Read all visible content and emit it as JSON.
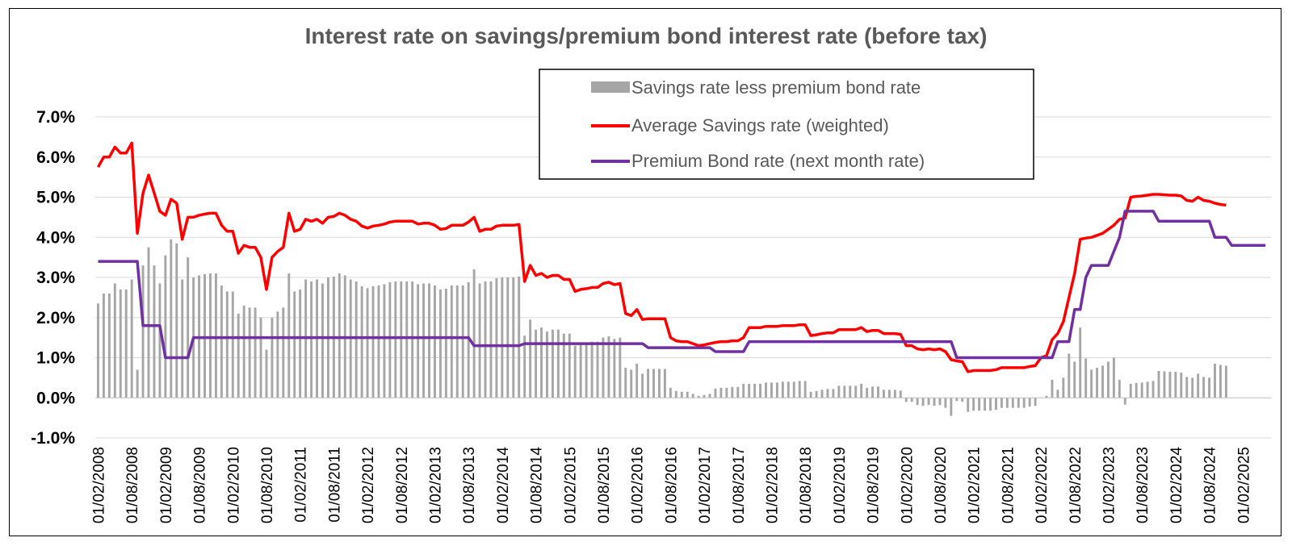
{
  "chart_data": {
    "type": "bar+line",
    "title": "Interest rate on savings/premium bond interest rate (before tax)",
    "xlabel": "",
    "ylabel": "",
    "ylim": [
      -0.01,
      0.07
    ],
    "ytick_labels": [
      "-1.0%",
      "0.0%",
      "1.0%",
      "2.0%",
      "3.0%",
      "4.0%",
      "5.0%",
      "6.0%",
      "7.0%"
    ],
    "x_range": [
      "2008-02",
      "2025-06"
    ],
    "x_tick_labels": [
      "01/02/2008",
      "01/08/2008",
      "01/02/2009",
      "01/08/2009",
      "01/02/2010",
      "01/08/2010",
      "01/02/2011",
      "01/08/2011",
      "01/02/2012",
      "01/08/2012",
      "01/02/2013",
      "01/08/2013",
      "01/02/2014",
      "01/08/2014",
      "01/02/2015",
      "01/08/2015",
      "01/02/2016",
      "01/08/2016",
      "01/02/2017",
      "01/08/2017",
      "01/02/2018",
      "01/08/2018",
      "01/02/2019",
      "01/08/2019",
      "01/02/2020",
      "01/08/2020",
      "01/02/2021",
      "01/08/2021",
      "01/02/2022",
      "01/08/2022",
      "01/02/2023",
      "01/08/2023",
      "01/02/2024",
      "01/08/2024",
      "01/02/2025"
    ],
    "grid": true,
    "legend_position": "top-center",
    "series": [
      {
        "name": "Savings rate less premium bond rate",
        "type": "bar",
        "color": "#a6a6a6",
        "derived": "savings minus premium bond"
      },
      {
        "name": "Average Savings rate (weighted)",
        "type": "line",
        "color": "#ff0000",
        "points": [
          [
            "2008-02",
            5.75
          ],
          [
            "2008-03",
            6.0
          ],
          [
            "2008-04",
            6.0
          ],
          [
            "2008-05",
            6.25
          ],
          [
            "2008-06",
            6.1
          ],
          [
            "2008-07",
            6.1
          ],
          [
            "2008-08",
            6.35
          ],
          [
            "2008-09",
            4.1
          ],
          [
            "2008-10",
            5.1
          ],
          [
            "2008-11",
            5.55
          ],
          [
            "2008-12",
            5.1
          ],
          [
            "2009-01",
            4.65
          ],
          [
            "2009-02",
            4.55
          ],
          [
            "2009-03",
            4.95
          ],
          [
            "2009-04",
            4.85
          ],
          [
            "2009-05",
            3.95
          ],
          [
            "2009-06",
            4.5
          ],
          [
            "2009-07",
            4.5
          ],
          [
            "2009-08",
            4.55
          ],
          [
            "2009-09",
            4.58
          ],
          [
            "2009-10",
            4.6
          ],
          [
            "2009-11",
            4.6
          ],
          [
            "2009-12",
            4.3
          ],
          [
            "2010-01",
            4.15
          ],
          [
            "2010-02",
            4.15
          ],
          [
            "2010-03",
            3.6
          ],
          [
            "2010-04",
            3.8
          ],
          [
            "2010-05",
            3.75
          ],
          [
            "2010-06",
            3.75
          ],
          [
            "2010-07",
            3.5
          ],
          [
            "2010-08",
            2.7
          ],
          [
            "2010-09",
            3.5
          ],
          [
            "2010-10",
            3.65
          ],
          [
            "2010-11",
            3.75
          ],
          [
            "2010-12",
            4.6
          ],
          [
            "2011-01",
            4.15
          ],
          [
            "2011-02",
            4.2
          ],
          [
            "2011-03",
            4.45
          ],
          [
            "2011-04",
            4.4
          ],
          [
            "2011-05",
            4.45
          ],
          [
            "2011-06",
            4.35
          ],
          [
            "2011-07",
            4.5
          ],
          [
            "2011-08",
            4.52
          ],
          [
            "2011-09",
            4.6
          ],
          [
            "2011-10",
            4.55
          ],
          [
            "2011-11",
            4.45
          ],
          [
            "2011-12",
            4.4
          ],
          [
            "2012-01",
            4.28
          ],
          [
            "2012-02",
            4.23
          ],
          [
            "2012-03",
            4.28
          ],
          [
            "2012-04",
            4.3
          ],
          [
            "2012-05",
            4.33
          ],
          [
            "2012-06",
            4.38
          ],
          [
            "2012-07",
            4.4
          ],
          [
            "2012-08",
            4.4
          ],
          [
            "2012-09",
            4.4
          ],
          [
            "2012-10",
            4.4
          ],
          [
            "2012-11",
            4.33
          ],
          [
            "2012-12",
            4.35
          ],
          [
            "2013-01",
            4.35
          ],
          [
            "2013-02",
            4.3
          ],
          [
            "2013-03",
            4.2
          ],
          [
            "2013-04",
            4.22
          ],
          [
            "2013-05",
            4.3
          ],
          [
            "2013-06",
            4.3
          ],
          [
            "2013-07",
            4.3
          ],
          [
            "2013-08",
            4.38
          ],
          [
            "2013-09",
            4.5
          ],
          [
            "2013-10",
            4.15
          ],
          [
            "2013-11",
            4.2
          ],
          [
            "2013-12",
            4.2
          ],
          [
            "2014-01",
            4.28
          ],
          [
            "2014-02",
            4.3
          ],
          [
            "2014-03",
            4.3
          ],
          [
            "2014-04",
            4.3
          ],
          [
            "2014-05",
            4.32
          ],
          [
            "2014-06",
            2.9
          ],
          [
            "2014-07",
            3.3
          ],
          [
            "2014-08",
            3.05
          ],
          [
            "2014-09",
            3.1
          ],
          [
            "2014-10",
            3.0
          ],
          [
            "2014-11",
            3.05
          ],
          [
            "2014-12",
            3.05
          ],
          [
            "2015-01",
            2.95
          ],
          [
            "2015-02",
            2.95
          ],
          [
            "2015-03",
            2.65
          ],
          [
            "2015-04",
            2.7
          ],
          [
            "2015-05",
            2.72
          ],
          [
            "2015-06",
            2.75
          ],
          [
            "2015-07",
            2.75
          ],
          [
            "2015-08",
            2.85
          ],
          [
            "2015-09",
            2.88
          ],
          [
            "2015-10",
            2.82
          ],
          [
            "2015-11",
            2.85
          ],
          [
            "2015-12",
            2.1
          ],
          [
            "2016-01",
            2.05
          ],
          [
            "2016-02",
            2.2
          ],
          [
            "2016-03",
            1.95
          ],
          [
            "2016-04",
            1.97
          ],
          [
            "2016-05",
            1.97
          ],
          [
            "2016-06",
            1.97
          ],
          [
            "2016-07",
            1.97
          ],
          [
            "2016-08",
            1.5
          ],
          [
            "2016-09",
            1.42
          ],
          [
            "2016-10",
            1.4
          ],
          [
            "2016-11",
            1.4
          ],
          [
            "2016-12",
            1.35
          ],
          [
            "2017-01",
            1.3
          ],
          [
            "2017-02",
            1.32
          ],
          [
            "2017-03",
            1.35
          ],
          [
            "2017-04",
            1.38
          ],
          [
            "2017-05",
            1.4
          ],
          [
            "2017-06",
            1.4
          ],
          [
            "2017-07",
            1.42
          ],
          [
            "2017-08",
            1.42
          ],
          [
            "2017-09",
            1.5
          ],
          [
            "2017-10",
            1.75
          ],
          [
            "2017-11",
            1.75
          ],
          [
            "2017-12",
            1.75
          ],
          [
            "2018-01",
            1.78
          ],
          [
            "2018-02",
            1.78
          ],
          [
            "2018-03",
            1.78
          ],
          [
            "2018-04",
            1.8
          ],
          [
            "2018-05",
            1.8
          ],
          [
            "2018-06",
            1.8
          ],
          [
            "2018-07",
            1.82
          ],
          [
            "2018-08",
            1.82
          ],
          [
            "2018-09",
            1.55
          ],
          [
            "2018-10",
            1.57
          ],
          [
            "2018-11",
            1.6
          ],
          [
            "2018-12",
            1.62
          ],
          [
            "2019-01",
            1.62
          ],
          [
            "2019-02",
            1.7
          ],
          [
            "2019-03",
            1.7
          ],
          [
            "2019-04",
            1.7
          ],
          [
            "2019-05",
            1.7
          ],
          [
            "2019-06",
            1.75
          ],
          [
            "2019-07",
            1.65
          ],
          [
            "2019-08",
            1.68
          ],
          [
            "2019-09",
            1.68
          ],
          [
            "2019-10",
            1.6
          ],
          [
            "2019-11",
            1.6
          ],
          [
            "2019-12",
            1.6
          ],
          [
            "2020-01",
            1.58
          ],
          [
            "2020-02",
            1.3
          ],
          [
            "2020-03",
            1.3
          ],
          [
            "2020-04",
            1.22
          ],
          [
            "2020-05",
            1.2
          ],
          [
            "2020-06",
            1.22
          ],
          [
            "2020-07",
            1.2
          ],
          [
            "2020-08",
            1.22
          ],
          [
            "2020-09",
            1.15
          ],
          [
            "2020-10",
            0.95
          ],
          [
            "2020-11",
            0.92
          ],
          [
            "2020-12",
            0.9
          ],
          [
            "2021-01",
            0.65
          ],
          [
            "2021-02",
            0.68
          ],
          [
            "2021-03",
            0.68
          ],
          [
            "2021-04",
            0.68
          ],
          [
            "2021-05",
            0.68
          ],
          [
            "2021-06",
            0.7
          ],
          [
            "2021-07",
            0.75
          ],
          [
            "2021-08",
            0.75
          ],
          [
            "2021-09",
            0.75
          ],
          [
            "2021-10",
            0.75
          ],
          [
            "2021-11",
            0.75
          ],
          [
            "2021-12",
            0.78
          ],
          [
            "2022-01",
            0.8
          ],
          [
            "2022-02",
            1.0
          ],
          [
            "2022-03",
            1.05
          ],
          [
            "2022-04",
            1.45
          ],
          [
            "2022-05",
            1.6
          ],
          [
            "2022-06",
            1.9
          ],
          [
            "2022-07",
            2.5
          ],
          [
            "2022-08",
            3.1
          ],
          [
            "2022-09",
            3.95
          ],
          [
            "2022-10",
            3.98
          ],
          [
            "2022-11",
            4.0
          ],
          [
            "2022-12",
            4.05
          ],
          [
            "2023-01",
            4.1
          ],
          [
            "2023-02",
            4.2
          ],
          [
            "2023-03",
            4.3
          ],
          [
            "2023-04",
            4.45
          ],
          [
            "2023-05",
            4.48
          ],
          [
            "2023-06",
            5.0
          ],
          [
            "2023-07",
            5.02
          ],
          [
            "2023-08",
            5.03
          ],
          [
            "2023-09",
            5.05
          ],
          [
            "2023-10",
            5.07
          ],
          [
            "2023-11",
            5.07
          ],
          [
            "2023-12",
            5.06
          ],
          [
            "2024-01",
            5.05
          ],
          [
            "2024-02",
            5.05
          ],
          [
            "2024-03",
            5.03
          ],
          [
            "2024-04",
            4.92
          ],
          [
            "2024-05",
            4.9
          ],
          [
            "2024-06",
            5.0
          ],
          [
            "2024-07",
            4.92
          ],
          [
            "2024-08",
            4.9
          ],
          [
            "2024-09",
            4.85
          ],
          [
            "2024-10",
            4.82
          ],
          [
            "2024-11",
            4.8
          ]
        ]
      },
      {
        "name": "Premium Bond rate (next month rate)",
        "type": "line",
        "color": "#7030a0",
        "steps": [
          [
            "2008-02",
            3.4
          ],
          [
            "2008-09",
            3.4
          ],
          [
            "2008-10",
            1.8
          ],
          [
            "2009-01",
            1.8
          ],
          [
            "2009-02",
            1.0
          ],
          [
            "2009-06",
            1.0
          ],
          [
            "2009-07",
            1.5
          ],
          [
            "2013-08",
            1.5
          ],
          [
            "2013-09",
            1.3
          ],
          [
            "2014-05",
            1.3
          ],
          [
            "2014-06",
            1.35
          ],
          [
            "2016-03",
            1.35
          ],
          [
            "2016-04",
            1.25
          ],
          [
            "2017-03",
            1.25
          ],
          [
            "2017-04",
            1.15
          ],
          [
            "2017-09",
            1.15
          ],
          [
            "2017-10",
            1.4
          ],
          [
            "2020-10",
            1.4
          ],
          [
            "2020-11",
            1.0
          ],
          [
            "2022-04",
            1.0
          ],
          [
            "2022-05",
            1.4
          ],
          [
            "2022-07",
            1.4
          ],
          [
            "2022-08",
            2.2
          ],
          [
            "2022-09",
            2.2
          ],
          [
            "2022-10",
            3.0
          ],
          [
            "2022-11",
            3.3
          ],
          [
            "2023-02",
            3.3
          ],
          [
            "2023-04",
            4.0
          ],
          [
            "2023-05",
            4.65
          ],
          [
            "2023-10",
            4.65
          ],
          [
            "2023-11",
            4.4
          ],
          [
            "2024-08",
            4.4
          ],
          [
            "2024-09",
            4.0
          ],
          [
            "2024-11",
            4.0
          ],
          [
            "2024-12",
            3.8
          ],
          [
            "2025-06",
            3.8
          ]
        ]
      }
    ]
  }
}
